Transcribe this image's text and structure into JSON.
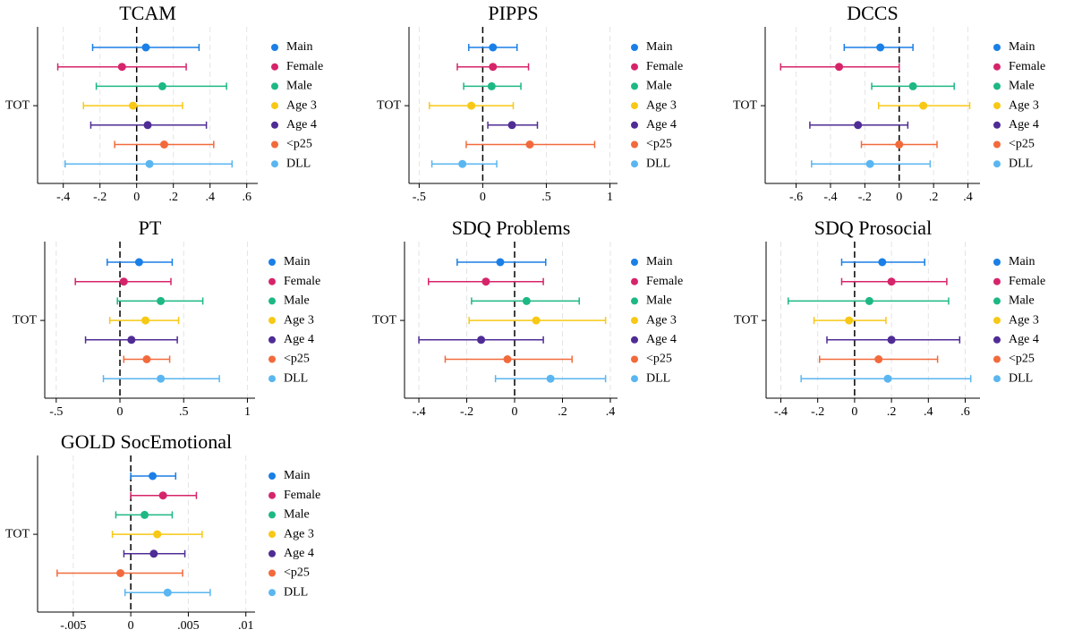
{
  "chart_data": [
    {
      "type": "coefplot",
      "title": "TCAM",
      "categories": [
        "TOT"
      ],
      "xline": 0,
      "grid": true,
      "xlim": [
        -0.54,
        0.66
      ],
      "xticks": [
        {
          "value": -0.4,
          "label": "-.4"
        },
        {
          "value": -0.2,
          "label": "-.2"
        },
        0,
        {
          "value": 0.2,
          "label": ".2"
        },
        {
          "value": 0.4,
          "label": ".4"
        },
        {
          "value": 0.6,
          "label": ".6"
        }
      ],
      "series": [
        {
          "name": "Main",
          "color": "#1a7fe6",
          "values": [
            0.05
          ],
          "low": [
            -0.24
          ],
          "high": [
            0.34
          ]
        },
        {
          "name": "Female",
          "color": "#d6246a",
          "values": [
            -0.08
          ],
          "low": [
            -0.43
          ],
          "high": [
            0.27
          ]
        },
        {
          "name": "Male",
          "color": "#1db884",
          "values": [
            0.14
          ],
          "low": [
            -0.22
          ],
          "high": [
            0.49
          ]
        },
        {
          "name": "Age 3",
          "color": "#f7c815",
          "values": [
            -0.02
          ],
          "low": [
            -0.29
          ],
          "high": [
            0.25
          ]
        },
        {
          "name": "Age 4",
          "color": "#4f2c95",
          "values": [
            0.06
          ],
          "low": [
            -0.25
          ],
          "high": [
            0.38
          ]
        },
        {
          "name": "<p25",
          "color": "#f26a3c",
          "values": [
            0.15
          ],
          "low": [
            -0.12
          ],
          "high": [
            0.42
          ]
        },
        {
          "name": "DLL",
          "color": "#5ab6f0",
          "values": [
            0.07
          ],
          "low": [
            -0.39
          ],
          "high": [
            0.52
          ]
        }
      ]
    },
    {
      "type": "coefplot",
      "title": "PIPPS",
      "categories": [
        "TOT"
      ],
      "xline": 0,
      "grid": true,
      "xlim": [
        -0.58,
        1.06
      ],
      "xticks": [
        {
          "value": -0.5,
          "label": "-.5"
        },
        0,
        {
          "value": 0.5,
          "label": ".5"
        },
        1
      ],
      "series": [
        {
          "name": "Main",
          "color": "#1a7fe6",
          "values": [
            0.08
          ],
          "low": [
            -0.11
          ],
          "high": [
            0.27
          ]
        },
        {
          "name": "Female",
          "color": "#d6246a",
          "values": [
            0.08
          ],
          "low": [
            -0.2
          ],
          "high": [
            0.36
          ]
        },
        {
          "name": "Male",
          "color": "#1db884",
          "values": [
            0.07
          ],
          "low": [
            -0.15
          ],
          "high": [
            0.3
          ]
        },
        {
          "name": "Age 3",
          "color": "#f7c815",
          "values": [
            -0.09
          ],
          "low": [
            -0.42
          ],
          "high": [
            0.24
          ]
        },
        {
          "name": "Age 4",
          "color": "#4f2c95",
          "values": [
            0.23
          ],
          "low": [
            0.04
          ],
          "high": [
            0.43
          ]
        },
        {
          "name": "<p25",
          "color": "#f26a3c",
          "values": [
            0.37
          ],
          "low": [
            -0.13
          ],
          "high": [
            0.88
          ]
        },
        {
          "name": "DLL",
          "color": "#5ab6f0",
          "values": [
            -0.16
          ],
          "low": [
            -0.4
          ],
          "high": [
            0.11
          ]
        }
      ]
    },
    {
      "type": "coefplot",
      "title": "DCCS",
      "categories": [
        "TOT"
      ],
      "xline": 0,
      "grid": true,
      "xlim": [
        -0.78,
        0.47
      ],
      "xticks": [
        {
          "value": -0.6,
          "label": "-.6"
        },
        {
          "value": -0.4,
          "label": "-.4"
        },
        {
          "value": -0.2,
          "label": "-.2"
        },
        0,
        {
          "value": 0.2,
          "label": ".2"
        },
        {
          "value": 0.4,
          "label": ".4"
        }
      ],
      "series": [
        {
          "name": "Main",
          "color": "#1a7fe6",
          "values": [
            -0.11
          ],
          "low": [
            -0.32
          ],
          "high": [
            0.08
          ]
        },
        {
          "name": "Female",
          "color": "#d6246a",
          "values": [
            -0.35
          ],
          "low": [
            -0.69
          ],
          "high": [
            0.0
          ]
        },
        {
          "name": "Male",
          "color": "#1db884",
          "values": [
            0.08
          ],
          "low": [
            -0.16
          ],
          "high": [
            0.32
          ]
        },
        {
          "name": "Age 3",
          "color": "#f7c815",
          "values": [
            0.14
          ],
          "low": [
            -0.12
          ],
          "high": [
            0.41
          ]
        },
        {
          "name": "Age 4",
          "color": "#4f2c95",
          "values": [
            -0.24
          ],
          "low": [
            -0.52
          ],
          "high": [
            0.05
          ]
        },
        {
          "name": "<p25",
          "color": "#f26a3c",
          "values": [
            0.0
          ],
          "low": [
            -0.22
          ],
          "high": [
            0.22
          ]
        },
        {
          "name": "DLL",
          "color": "#5ab6f0",
          "values": [
            -0.17
          ],
          "low": [
            -0.51
          ],
          "high": [
            0.18
          ]
        }
      ]
    },
    {
      "type": "coefplot",
      "title": "PT",
      "categories": [
        "TOT"
      ],
      "xline": 0,
      "grid": true,
      "xlim": [
        -0.59,
        1.06
      ],
      "xticks": [
        {
          "value": -0.5,
          "label": "-.5"
        },
        0,
        {
          "value": 0.5,
          "label": ".5"
        },
        1
      ],
      "series": [
        {
          "name": "Main",
          "color": "#1a7fe6",
          "values": [
            0.15
          ],
          "low": [
            -0.1
          ],
          "high": [
            0.41
          ]
        },
        {
          "name": "Female",
          "color": "#d6246a",
          "values": [
            0.03
          ],
          "low": [
            -0.35
          ],
          "high": [
            0.4
          ]
        },
        {
          "name": "Male",
          "color": "#1db884",
          "values": [
            0.32
          ],
          "low": [
            -0.02
          ],
          "high": [
            0.65
          ]
        },
        {
          "name": "Age 3",
          "color": "#f7c815",
          "values": [
            0.2
          ],
          "low": [
            -0.08
          ],
          "high": [
            0.46
          ]
        },
        {
          "name": "Age 4",
          "color": "#4f2c95",
          "values": [
            0.09
          ],
          "low": [
            -0.27
          ],
          "high": [
            0.45
          ]
        },
        {
          "name": "<p25",
          "color": "#f26a3c",
          "values": [
            0.21
          ],
          "low": [
            0.03
          ],
          "high": [
            0.39
          ]
        },
        {
          "name": "DLL",
          "color": "#5ab6f0",
          "values": [
            0.32
          ],
          "low": [
            -0.13
          ],
          "high": [
            0.78
          ]
        }
      ]
    },
    {
      "type": "coefplot",
      "title": "SDQ Problems",
      "categories": [
        "TOT"
      ],
      "xline": 0,
      "grid": true,
      "xlim": [
        -0.46,
        0.43
      ],
      "xticks": [
        {
          "value": -0.4,
          "label": "-.4"
        },
        {
          "value": -0.2,
          "label": "-.2"
        },
        0,
        {
          "value": 0.2,
          "label": ".2"
        },
        {
          "value": 0.4,
          "label": ".4"
        }
      ],
      "series": [
        {
          "name": "Main",
          "color": "#1a7fe6",
          "values": [
            -0.06
          ],
          "low": [
            -0.24
          ],
          "high": [
            0.13
          ]
        },
        {
          "name": "Female",
          "color": "#d6246a",
          "values": [
            -0.12
          ],
          "low": [
            -0.36
          ],
          "high": [
            0.12
          ]
        },
        {
          "name": "Male",
          "color": "#1db884",
          "values": [
            0.05
          ],
          "low": [
            -0.18
          ],
          "high": [
            0.27
          ]
        },
        {
          "name": "Age 3",
          "color": "#f7c815",
          "values": [
            0.09
          ],
          "low": [
            -0.19
          ],
          "high": [
            0.38
          ]
        },
        {
          "name": "Age 4",
          "color": "#4f2c95",
          "values": [
            -0.14
          ],
          "low": [
            -0.4
          ],
          "high": [
            0.12
          ]
        },
        {
          "name": "<p25",
          "color": "#f26a3c",
          "values": [
            -0.03
          ],
          "low": [
            -0.29
          ],
          "high": [
            0.24
          ]
        },
        {
          "name": "DLL",
          "color": "#5ab6f0",
          "values": [
            0.15
          ],
          "low": [
            -0.08
          ],
          "high": [
            0.38
          ]
        }
      ]
    },
    {
      "type": "coefplot",
      "title": "SDQ Prosocial",
      "categories": [
        "TOT"
      ],
      "xline": 0,
      "grid": true,
      "xlim": [
        -0.48,
        0.68
      ],
      "xticks": [
        {
          "value": -0.4,
          "label": "-.4"
        },
        {
          "value": -0.2,
          "label": "-.2"
        },
        0,
        {
          "value": 0.2,
          "label": ".2"
        },
        {
          "value": 0.4,
          "label": ".4"
        },
        {
          "value": 0.6,
          "label": ".6"
        }
      ],
      "series": [
        {
          "name": "Main",
          "color": "#1a7fe6",
          "values": [
            0.15
          ],
          "low": [
            -0.07
          ],
          "high": [
            0.38
          ]
        },
        {
          "name": "Female",
          "color": "#d6246a",
          "values": [
            0.2
          ],
          "low": [
            -0.07
          ],
          "high": [
            0.5
          ]
        },
        {
          "name": "Male",
          "color": "#1db884",
          "values": [
            0.08
          ],
          "low": [
            -0.36
          ],
          "high": [
            0.51
          ]
        },
        {
          "name": "Age 3",
          "color": "#f7c815",
          "values": [
            -0.03
          ],
          "low": [
            -0.22
          ],
          "high": [
            0.17
          ]
        },
        {
          "name": "Age 4",
          "color": "#4f2c95",
          "values": [
            0.2
          ],
          "low": [
            -0.15
          ],
          "high": [
            0.57
          ]
        },
        {
          "name": "<p25",
          "color": "#f26a3c",
          "values": [
            0.13
          ],
          "low": [
            -0.19
          ],
          "high": [
            0.45
          ]
        },
        {
          "name": "DLL",
          "color": "#5ab6f0",
          "values": [
            0.18
          ],
          "low": [
            -0.29
          ],
          "high": [
            0.63
          ]
        }
      ]
    },
    {
      "type": "coefplot",
      "title": "GOLD SocEmotional",
      "categories": [
        "TOT"
      ],
      "xline": 0,
      "grid": true,
      "xlim": [
        -0.0081,
        0.0108
      ],
      "xticks": [
        {
          "value": -0.005,
          "label": "-.005"
        },
        0,
        {
          "value": 0.005,
          "label": ".005"
        },
        {
          "value": 0.01,
          "label": ".01"
        }
      ],
      "series": [
        {
          "name": "Main",
          "color": "#1a7fe6",
          "values": [
            0.0019
          ],
          "low": [
            0.0
          ],
          "high": [
            0.0039
          ]
        },
        {
          "name": "Female",
          "color": "#d6246a",
          "values": [
            0.0028
          ],
          "low": [
            0.0
          ],
          "high": [
            0.0057
          ]
        },
        {
          "name": "Male",
          "color": "#1db884",
          "values": [
            0.0012
          ],
          "low": [
            -0.0013
          ],
          "high": [
            0.0036
          ]
        },
        {
          "name": "Age 3",
          "color": "#f7c815",
          "values": [
            0.0023
          ],
          "low": [
            -0.0016
          ],
          "high": [
            0.0062
          ]
        },
        {
          "name": "Age 4",
          "color": "#4f2c95",
          "values": [
            0.002
          ],
          "low": [
            -0.0006
          ],
          "high": [
            0.0047
          ]
        },
        {
          "name": "<p25",
          "color": "#f26a3c",
          "values": [
            -0.0009
          ],
          "low": [
            -0.0064
          ],
          "high": [
            0.0045
          ]
        },
        {
          "name": "DLL",
          "color": "#5ab6f0",
          "values": [
            0.0032
          ],
          "low": [
            -0.0005
          ],
          "high": [
            0.0069
          ]
        }
      ]
    }
  ]
}
